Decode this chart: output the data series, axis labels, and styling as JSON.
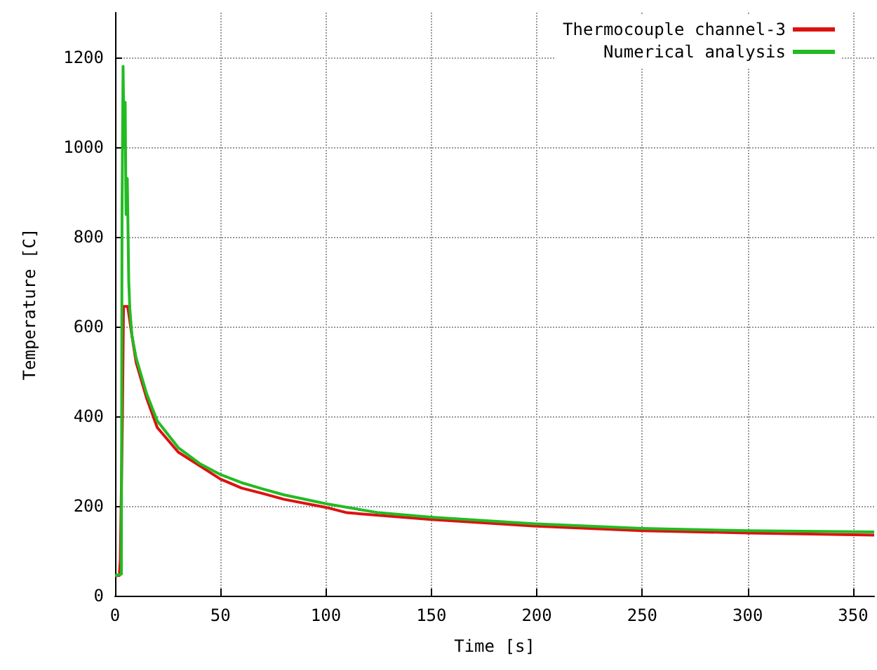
{
  "chart_data": {
    "type": "line",
    "xlabel": "Time [s]",
    "ylabel": "Temperature [C]",
    "xlim": [
      0,
      360
    ],
    "xticks": [
      0,
      50,
      100,
      150,
      200,
      250,
      300,
      350
    ],
    "ylim": [
      0,
      1300
    ],
    "yticks": [
      0,
      200,
      400,
      600,
      800,
      1000,
      1200
    ],
    "grid": true,
    "legend": "top right",
    "marker": "none",
    "line_style": "solid",
    "series": [
      {
        "name": "Thermocouple channel-3",
        "color": "#dd1111",
        "x": [
          0,
          2,
          2.5,
          3.5,
          4,
          6,
          8,
          10,
          15,
          20,
          30,
          40,
          50,
          60,
          70,
          80,
          100,
          110,
          150,
          200,
          250,
          300,
          360
        ],
        "values": [
          45,
          45,
          80,
          400,
          645,
          645,
          580,
          520,
          440,
          375,
          320,
          290,
          260,
          240,
          228,
          215,
          197,
          185,
          170,
          155,
          145,
          140,
          135
        ]
      },
      {
        "name": "Numerical analysis",
        "color": "#22bb22",
        "x": [
          0,
          3,
          3.3,
          3.8,
          4.3,
          4.8,
          5.2,
          5.8,
          6.5,
          7,
          8,
          10,
          15,
          20,
          30,
          40,
          50,
          60,
          70,
          80,
          100,
          125,
          150,
          200,
          250,
          300,
          360
        ],
        "values": [
          45,
          48,
          850,
          1180,
          1000,
          1100,
          850,
          930,
          700,
          640,
          580,
          530,
          450,
          390,
          330,
          295,
          270,
          252,
          238,
          225,
          205,
          185,
          175,
          160,
          150,
          145,
          142
        ]
      }
    ]
  }
}
